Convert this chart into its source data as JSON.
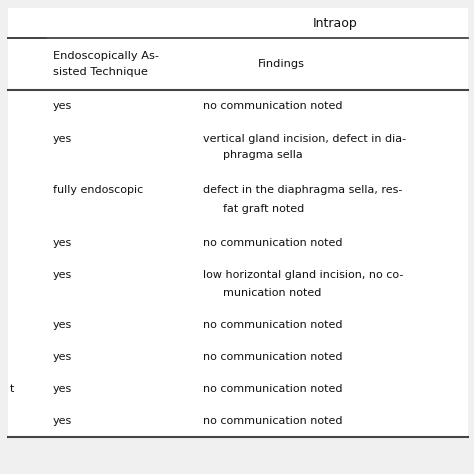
{
  "title": "Intraop",
  "col1_header_line1": "Endoscopically As-",
  "col1_header_line2": "sisted Technique",
  "col2_header": "Findings",
  "rows": [
    {
      "col1": "yes",
      "col2": "no communication noted",
      "col2_line2": "",
      "col0": ""
    },
    {
      "col1": "yes",
      "col2": "vertical gland incision, defect in dia-",
      "col2_line2": "phragma sella",
      "col0": ""
    },
    {
      "col1": "fully endoscopic",
      "col2": "defect in the diaphragma sella, res-",
      "col2_line2": "fat graft noted",
      "col0": ""
    },
    {
      "col1": "yes",
      "col2": "no communication noted",
      "col2_line2": "",
      "col0": ""
    },
    {
      "col1": "yes",
      "col2": "low horizontal gland incision, no co-",
      "col2_line2": "munication noted",
      "col0": ""
    },
    {
      "col1": "yes",
      "col2": "no communication noted",
      "col2_line2": "",
      "col0": ""
    },
    {
      "col1": "yes",
      "col2": "no communication noted",
      "col2_line2": "",
      "col0": ""
    },
    {
      "col1": "yes",
      "col2": "no communication noted",
      "col2_line2": "",
      "col0": "t"
    },
    {
      "col1": "yes",
      "col2": "no communication noted",
      "col2_line2": "",
      "col0": ""
    }
  ],
  "bg_color": "#f0f0f0",
  "table_bg": "#ffffff",
  "text_color": "#111111",
  "line_color": "#444444",
  "font_size": 8.0,
  "header_font_size": 8.2,
  "title_font_size": 9.0,
  "figsize": [
    4.74,
    4.74
  ],
  "dpi": 100
}
